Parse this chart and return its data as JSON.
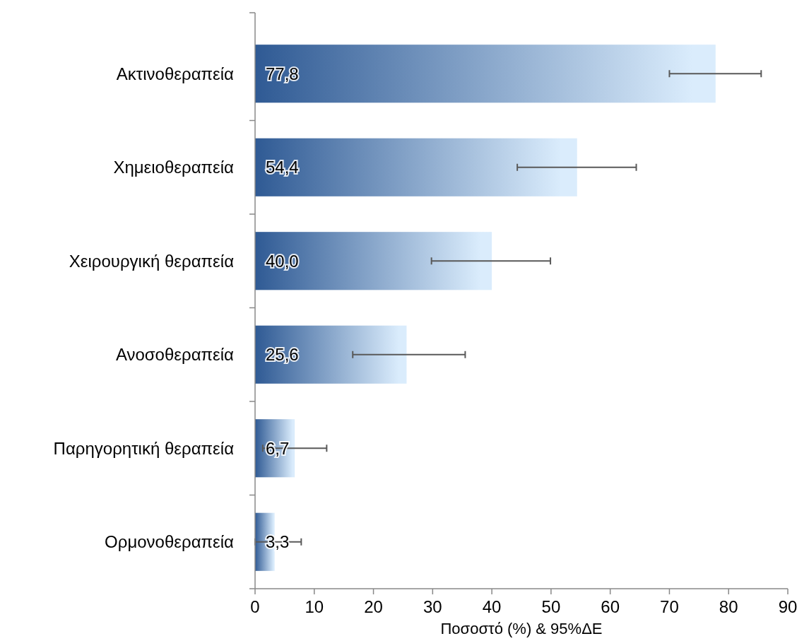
{
  "chart_data": {
    "type": "bar",
    "orientation": "horizontal",
    "xlabel": "Ποσοστό (%) & 95%ΔΕ",
    "categories": [
      "Ακτινοθεραπεία",
      "Χημειοθεραπεία",
      "Χειρουργική θεραπεία",
      "Ανοσοθεραπεία",
      "Παρηγορητική θεραπεία",
      "Ορμονοθεραπεία"
    ],
    "values": [
      77.8,
      54.4,
      40.0,
      25.6,
      6.7,
      3.3
    ],
    "value_labels": [
      "77,8",
      "54,4",
      "40,0",
      "25,6",
      "6,7",
      "3,3"
    ],
    "errors": [
      [
        70.0,
        85.5
      ],
      [
        44.3,
        64.4
      ],
      [
        29.8,
        49.9
      ],
      [
        16.5,
        35.5
      ],
      [
        1.3,
        12.1
      ],
      [
        0,
        7.8
      ]
    ],
    "color": "#2f5a94",
    "xlim": [
      0,
      90
    ],
    "xticks": [
      0,
      10,
      20,
      30,
      40,
      50,
      60,
      70,
      80,
      90
    ],
    "grid": false
  }
}
